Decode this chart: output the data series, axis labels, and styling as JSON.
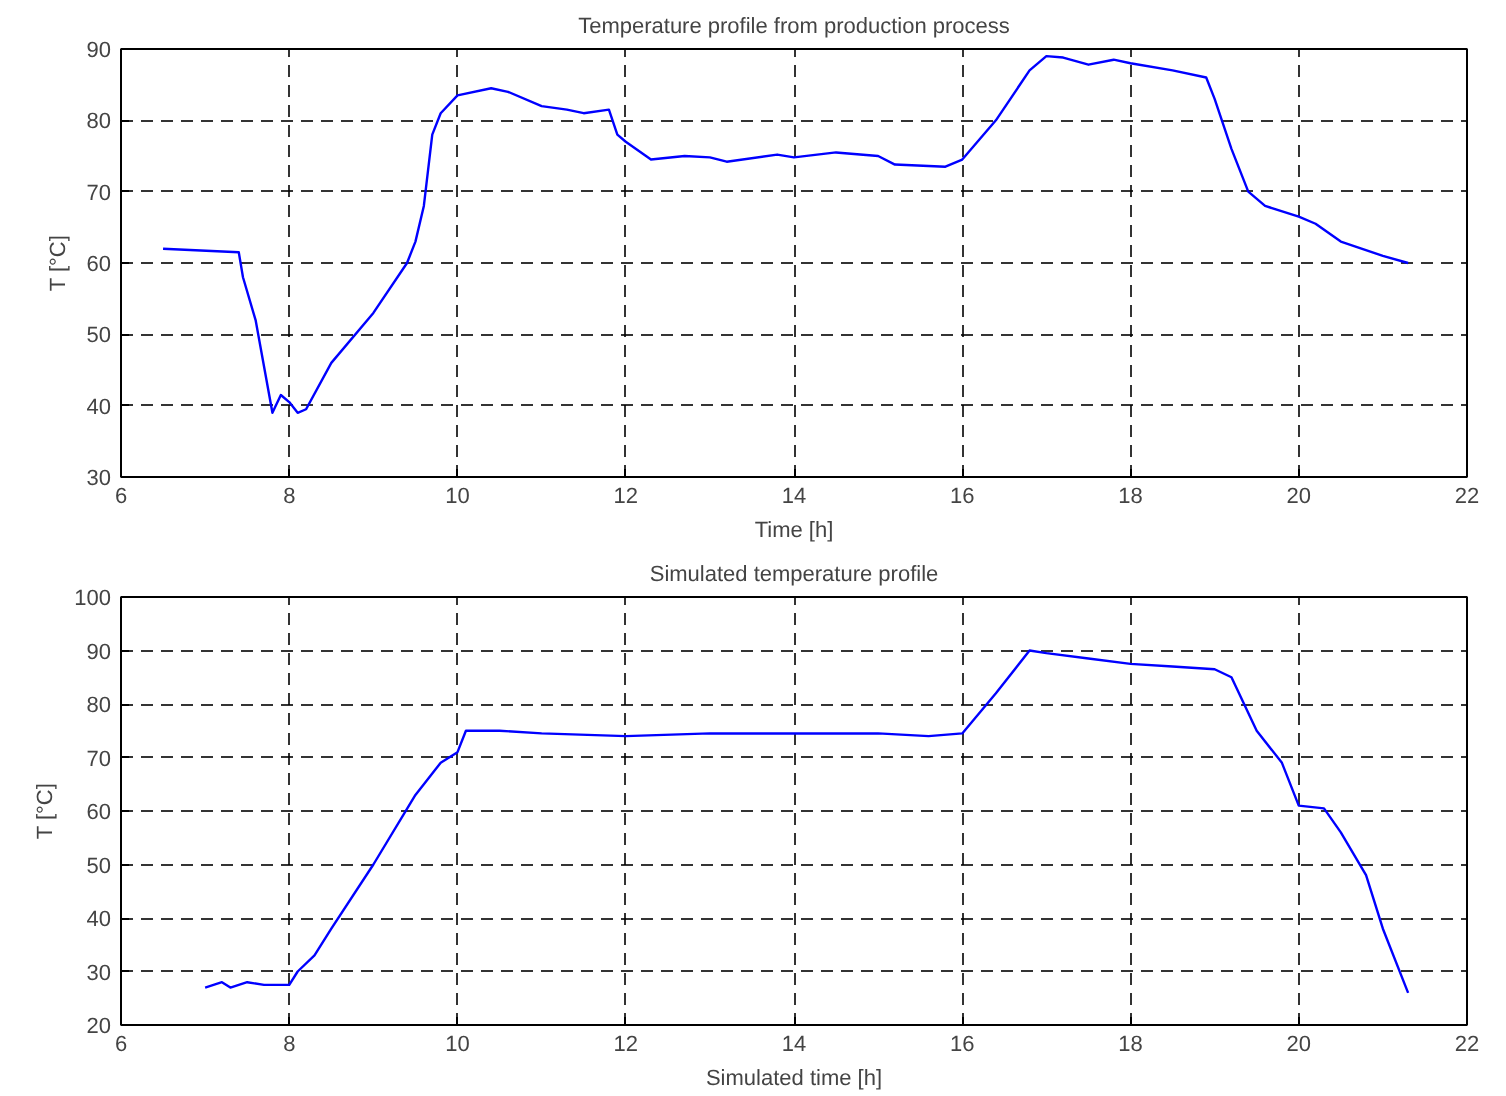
{
  "chart_data": [
    {
      "type": "line",
      "title": "Temperature profile from production process",
      "xlabel": "Time [h]",
      "ylabel": "T [°C]",
      "xlim": [
        6,
        22
      ],
      "ylim": [
        30,
        90
      ],
      "xticks": [
        6,
        8,
        10,
        12,
        14,
        16,
        18,
        20,
        22
      ],
      "yticks": [
        30,
        40,
        50,
        60,
        70,
        80,
        90
      ],
      "grid": true,
      "series": [
        {
          "color": "#0000ff",
          "x": [
            6.5,
            7.4,
            7.45,
            7.6,
            7.8,
            7.9,
            8.0,
            8.1,
            8.2,
            8.5,
            9.0,
            9.4,
            9.5,
            9.6,
            9.7,
            9.8,
            10.0,
            10.4,
            10.6,
            11.0,
            11.3,
            11.5,
            11.8,
            11.9,
            12.0,
            12.3,
            12.7,
            13.0,
            13.2,
            13.8,
            14.0,
            14.5,
            15.0,
            15.2,
            15.8,
            16.0,
            16.4,
            16.8,
            17.0,
            17.2,
            17.5,
            17.8,
            18.0,
            18.5,
            18.9,
            19.0,
            19.2,
            19.4,
            19.6,
            20.0,
            20.2,
            20.5,
            21.0,
            21.3
          ],
          "values": [
            62,
            61.5,
            58,
            52,
            39,
            41.5,
            40.5,
            39,
            39.5,
            46,
            53,
            60,
            63,
            68,
            78,
            81,
            83.5,
            84.5,
            84,
            82,
            81.5,
            81,
            81.5,
            78,
            77,
            74.5,
            75,
            74.8,
            74.2,
            75.2,
            74.8,
            75.5,
            75,
            73.8,
            73.5,
            74.5,
            80,
            87,
            89,
            88.8,
            87.8,
            88.5,
            88,
            87,
            86,
            83,
            76,
            70,
            68,
            66.5,
            65.5,
            63,
            61,
            60
          ]
        }
      ]
    },
    {
      "type": "line",
      "title": "Simulated temperature profile",
      "xlabel": "Simulated time [h]",
      "ylabel": "T [°C]",
      "xlim": [
        6,
        22
      ],
      "ylim": [
        20,
        100
      ],
      "xticks": [
        6,
        8,
        10,
        12,
        14,
        16,
        18,
        20,
        22
      ],
      "yticks": [
        20,
        30,
        40,
        50,
        60,
        70,
        80,
        90,
        100
      ],
      "grid": true,
      "series": [
        {
          "color": "#0000ff",
          "x": [
            7.0,
            7.2,
            7.3,
            7.5,
            7.7,
            8.0,
            8.1,
            8.3,
            8.5,
            9.0,
            9.5,
            9.8,
            10.0,
            10.1,
            10.5,
            11.0,
            12.0,
            13.0,
            14.0,
            15.0,
            15.6,
            16.0,
            16.4,
            16.8,
            17.0,
            17.5,
            18.0,
            18.5,
            19.0,
            19.2,
            19.5,
            19.8,
            20.0,
            20.3,
            20.5,
            20.8,
            21.0,
            21.3
          ],
          "values": [
            27,
            28,
            27,
            28,
            27.5,
            27.5,
            30,
            33,
            38,
            50,
            63,
            69,
            71,
            75,
            75,
            74.5,
            74,
            74.5,
            74.5,
            74.5,
            74,
            74.5,
            82,
            90,
            89.5,
            88.5,
            87.5,
            87,
            86.5,
            85,
            75,
            69,
            61,
            60.5,
            56,
            48,
            38,
            26
          ]
        }
      ]
    }
  ]
}
